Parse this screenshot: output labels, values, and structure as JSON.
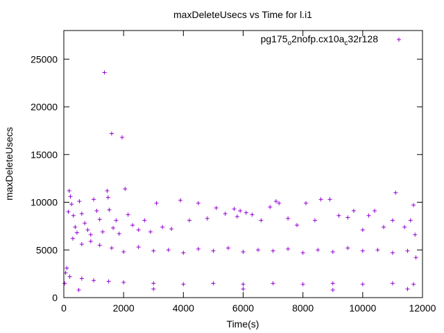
{
  "chart_data": {
    "type": "scatter",
    "title": "maxDeleteUsecs vs Time for l.i1",
    "xlabel": "Time(s)",
    "ylabel": "maxDeleteUsecs",
    "xlim": [
      0,
      12000
    ],
    "ylim": [
      0,
      28000
    ],
    "xticks": [
      0,
      2000,
      4000,
      6000,
      8000,
      10000,
      12000
    ],
    "yticks": [
      0,
      5000,
      10000,
      15000,
      20000,
      25000
    ],
    "xtick_labels": [
      "0",
      "2000",
      "4000",
      "6000",
      "8000",
      "10000",
      "12000"
    ],
    "ytick_labels": [
      "0",
      "5000",
      "10000",
      "15000",
      "20000",
      "25000"
    ],
    "grid": false,
    "legend_position": "top-right",
    "marker": "plus",
    "color": "#9400d3",
    "legend": {
      "prefix": "pg175",
      "sub1": "o",
      "middle": "2nofp.cx10a",
      "sub2": "c",
      "suffix": "32r128"
    },
    "series": [
      {
        "name": "pg175_o2nofp.cx10a_c32r128",
        "points": [
          [
            30,
            1500
          ],
          [
            60,
            2600
          ],
          [
            100,
            3100
          ],
          [
            150,
            9000
          ],
          [
            180,
            11200
          ],
          [
            220,
            10600
          ],
          [
            260,
            9800
          ],
          [
            320,
            8600
          ],
          [
            380,
            7400
          ],
          [
            440,
            6800
          ],
          [
            520,
            10100
          ],
          [
            600,
            8800
          ],
          [
            700,
            7800
          ],
          [
            800,
            7100
          ],
          [
            900,
            6600
          ],
          [
            1000,
            10300
          ],
          [
            1100,
            9100
          ],
          [
            1200,
            8200
          ],
          [
            1300,
            6900
          ],
          [
            1360,
            23600
          ],
          [
            1450,
            11200
          ],
          [
            1480,
            10500
          ],
          [
            1520,
            9200
          ],
          [
            1600,
            17200
          ],
          [
            1650,
            7300
          ],
          [
            1750,
            8100
          ],
          [
            1850,
            6700
          ],
          [
            1950,
            16800
          ],
          [
            2050,
            11400
          ],
          [
            2150,
            8700
          ],
          [
            2300,
            7600
          ],
          [
            2500,
            7100
          ],
          [
            2700,
            8100
          ],
          [
            2900,
            6900
          ],
          [
            3100,
            9900
          ],
          [
            3300,
            7400
          ],
          [
            3600,
            7200
          ],
          [
            3900,
            10200
          ],
          [
            4200,
            8100
          ],
          [
            4500,
            9900
          ],
          [
            4800,
            8300
          ],
          [
            5100,
            9400
          ],
          [
            5400,
            8800
          ],
          [
            5700,
            9300
          ],
          [
            5800,
            8500
          ],
          [
            5900,
            9100
          ],
          [
            6100,
            8900
          ],
          [
            6300,
            8700
          ],
          [
            6600,
            8100
          ],
          [
            6900,
            9500
          ],
          [
            7100,
            10100
          ],
          [
            7200,
            9900
          ],
          [
            7500,
            8300
          ],
          [
            7800,
            7600
          ],
          [
            8100,
            9900
          ],
          [
            8400,
            8100
          ],
          [
            8600,
            10300
          ],
          [
            8900,
            10300
          ],
          [
            9200,
            8600
          ],
          [
            9500,
            8400
          ],
          [
            9700,
            9100
          ],
          [
            10000,
            7100
          ],
          [
            10200,
            8600
          ],
          [
            10400,
            9100
          ],
          [
            10700,
            7400
          ],
          [
            11000,
            8100
          ],
          [
            11100,
            11000
          ],
          [
            11400,
            7400
          ],
          [
            11600,
            8100
          ],
          [
            11700,
            9700
          ],
          [
            11750,
            6600
          ],
          [
            11780,
            4200
          ],
          [
            300,
            6200
          ],
          [
            600,
            5600
          ],
          [
            900,
            5900
          ],
          [
            1200,
            5500
          ],
          [
            1600,
            5200
          ],
          [
            2000,
            4800
          ],
          [
            2500,
            5300
          ],
          [
            3000,
            4900
          ],
          [
            3500,
            5000
          ],
          [
            4000,
            4700
          ],
          [
            4500,
            5100
          ],
          [
            5000,
            4900
          ],
          [
            5500,
            5200
          ],
          [
            6000,
            4800
          ],
          [
            6500,
            5000
          ],
          [
            7000,
            4900
          ],
          [
            7500,
            5100
          ],
          [
            8000,
            4700
          ],
          [
            8500,
            5000
          ],
          [
            9000,
            4800
          ],
          [
            9500,
            5200
          ],
          [
            10000,
            4900
          ],
          [
            10500,
            5000
          ],
          [
            11000,
            4700
          ],
          [
            11500,
            4900
          ],
          [
            200,
            2200
          ],
          [
            600,
            2000
          ],
          [
            1000,
            1800
          ],
          [
            1500,
            1700
          ],
          [
            2000,
            1600
          ],
          [
            3000,
            1500
          ],
          [
            4000,
            1400
          ],
          [
            5000,
            1500
          ],
          [
            6000,
            1400
          ],
          [
            7000,
            1500
          ],
          [
            8000,
            1400
          ],
          [
            9000,
            1500
          ],
          [
            10000,
            1400
          ],
          [
            11000,
            1500
          ],
          [
            11700,
            1400
          ],
          [
            500,
            800
          ],
          [
            3000,
            900
          ],
          [
            6000,
            900
          ],
          [
            9000,
            800
          ],
          [
            11500,
            900
          ]
        ]
      }
    ]
  }
}
